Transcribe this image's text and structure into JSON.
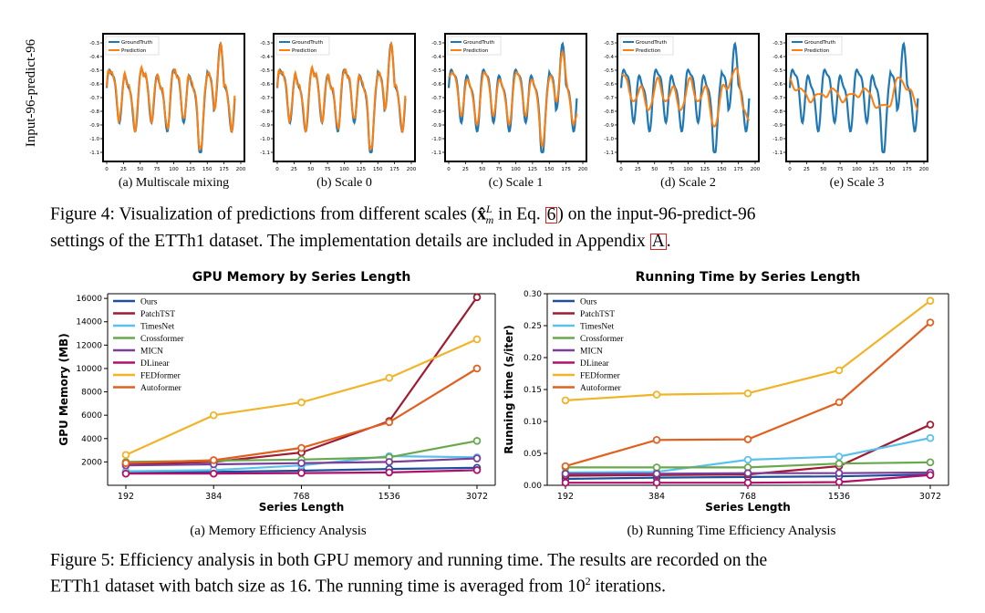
{
  "figure4": {
    "row_label": "Input-96-predict-96",
    "legend": [
      "GroundTruth",
      "Prediction"
    ],
    "y_ticks": [
      "-0.3",
      "-0.4",
      "-0.5",
      "-0.6",
      "-0.7",
      "-0.8",
      "-0.9",
      "-1.0",
      "-1.1"
    ],
    "x_ticks": [
      "0",
      "25",
      "50",
      "75",
      "100",
      "125",
      "150",
      "175",
      "200"
    ],
    "panels": [
      {
        "caption": "(a) Multiscale mixing",
        "smooth": 0
      },
      {
        "caption": "(b) Scale 0",
        "smooth": 0
      },
      {
        "caption": "(c) Scale 1",
        "smooth": 1
      },
      {
        "caption": "(d) Scale 2",
        "smooth": 2
      },
      {
        "caption": "(e) Scale 3",
        "smooth": 3
      }
    ],
    "caption_label": "Figure 4:",
    "caption_p1": "Visualization of predictions from different scales (",
    "caption_math": "x̂",
    "caption_sup": "L",
    "caption_sub": "m",
    "caption_p2": " in Eq. ",
    "caption_ref": "6",
    "caption_p3": ") on the input-96-predict-96",
    "caption_line2a": "settings of the ETTh1 dataset. The implementation details are included in Appendix ",
    "caption_ref2": "A",
    "caption_line2b": "."
  },
  "figure5": {
    "caption_label": "Figure 5:",
    "caption_line1": "Efficiency analysis in both GPU memory and running time. The results are recorded on the",
    "caption_line2a": "ETTh1 dataset with batch size as 16. The running time is averaged from 10",
    "caption_sup": "2",
    "caption_line2b": " iterations."
  },
  "colors": {
    "groundtruth": "#1f77b4",
    "prediction": "#ff7f0e",
    "Ours": "#1f4e9c",
    "PatchTST": "#9e1b32",
    "TimesNet": "#5bc0eb",
    "Crossformer": "#6aa84f",
    "MICN": "#7b3f98",
    "DLinear": "#b0106a",
    "FEDformer": "#f0b429",
    "Autoformer": "#e06020"
  },
  "chart_data": [
    {
      "type": "line",
      "title": "GPU Memory by Series Length",
      "subcaption": "(a) Memory Efficiency Analysis",
      "xlabel": "Series Length",
      "ylabel": "GPU Memory (MB)",
      "categories": [
        "192",
        "384",
        "768",
        "1536",
        "3072"
      ],
      "y_ticks": [
        2000,
        4000,
        6000,
        8000,
        10000,
        12000,
        14000,
        16000
      ],
      "ylim": [
        0,
        16400
      ],
      "series": [
        {
          "name": "Ours",
          "values": [
            1100,
            1150,
            1250,
            1400,
            1500
          ]
        },
        {
          "name": "PatchTST",
          "values": [
            1800,
            2000,
            2800,
            5500,
            16100
          ]
        },
        {
          "name": "TimesNet",
          "values": [
            1200,
            1300,
            1700,
            2500,
            2400
          ]
        },
        {
          "name": "Crossformer",
          "values": [
            2000,
            2100,
            2200,
            2400,
            3800
          ]
        },
        {
          "name": "MICN",
          "values": [
            1700,
            1800,
            1900,
            2000,
            2300
          ]
        },
        {
          "name": "DLinear",
          "values": [
            1000,
            1000,
            1050,
            1100,
            1300
          ]
        },
        {
          "name": "FEDformer",
          "values": [
            2600,
            6000,
            7100,
            9200,
            12500
          ]
        },
        {
          "name": "Autoformer",
          "values": [
            1900,
            2150,
            3200,
            5400,
            10000
          ]
        }
      ]
    },
    {
      "type": "line",
      "title": "Running Time by Series Length",
      "subcaption": "(b) Running Time Efficiency Analysis",
      "xlabel": "Series Length",
      "ylabel": "Running time (s/iter)",
      "categories": [
        "192",
        "384",
        "768",
        "1536",
        "3072"
      ],
      "y_ticks": [
        "0.00",
        "0.05",
        "0.10",
        "0.15",
        "0.20",
        "0.25",
        "0.30"
      ],
      "ylim": [
        0,
        0.3
      ],
      "series": [
        {
          "name": "Ours",
          "values": [
            0.01,
            0.012,
            0.013,
            0.014,
            0.017
          ]
        },
        {
          "name": "PatchTST",
          "values": [
            0.015,
            0.016,
            0.017,
            0.03,
            0.095
          ]
        },
        {
          "name": "TimesNet",
          "values": [
            0.02,
            0.021,
            0.04,
            0.045,
            0.074
          ]
        },
        {
          "name": "Crossformer",
          "values": [
            0.028,
            0.028,
            0.028,
            0.034,
            0.036
          ]
        },
        {
          "name": "MICN",
          "values": [
            0.018,
            0.018,
            0.019,
            0.019,
            0.02
          ]
        },
        {
          "name": "DLinear",
          "values": [
            0.004,
            0.004,
            0.004,
            0.005,
            0.016
          ]
        },
        {
          "name": "FEDformer",
          "values": [
            0.133,
            0.142,
            0.144,
            0.18,
            0.289
          ]
        },
        {
          "name": "Autoformer",
          "values": [
            0.03,
            0.071,
            0.072,
            0.13,
            0.255
          ]
        }
      ]
    }
  ]
}
